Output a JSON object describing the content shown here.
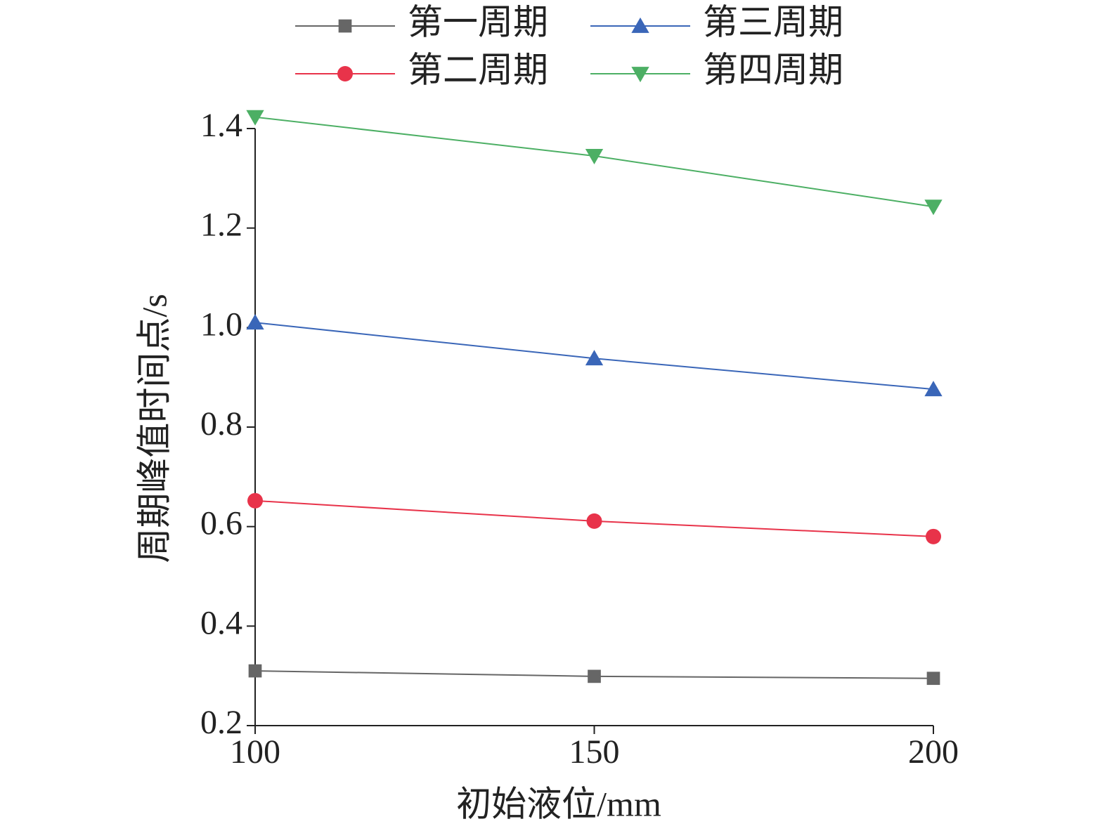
{
  "chart_data": {
    "type": "line",
    "x_label": "初始液位/mm",
    "y_label": "周期峰值时间点/s",
    "x": [
      100,
      150,
      200
    ],
    "series": [
      {
        "name": "第一周期",
        "color": "#666666",
        "marker": "square",
        "values": [
          0.31,
          0.299,
          0.295
        ]
      },
      {
        "name": "第二周期",
        "color": "#e8334a",
        "marker": "circle",
        "values": [
          0.652,
          0.611,
          0.58
        ]
      },
      {
        "name": "第三周期",
        "color": "#3a66b8",
        "marker": "triangle-up",
        "values": [
          1.01,
          0.938,
          0.876
        ]
      },
      {
        "name": "第四周期",
        "color": "#4caf64",
        "marker": "triangle-down",
        "values": [
          1.423,
          1.345,
          1.243
        ]
      }
    ],
    "xlim": [
      100,
      200
    ],
    "xticks": [
      100,
      150,
      200
    ],
    "ylim": [
      0.2,
      1.4
    ],
    "yticks": [
      0.2,
      0.4,
      0.6,
      0.8,
      {
        "value": 1.0,
        "label": "1.0"
      },
      1.2,
      1.4
    ],
    "legend": "top",
    "grid": false
  }
}
